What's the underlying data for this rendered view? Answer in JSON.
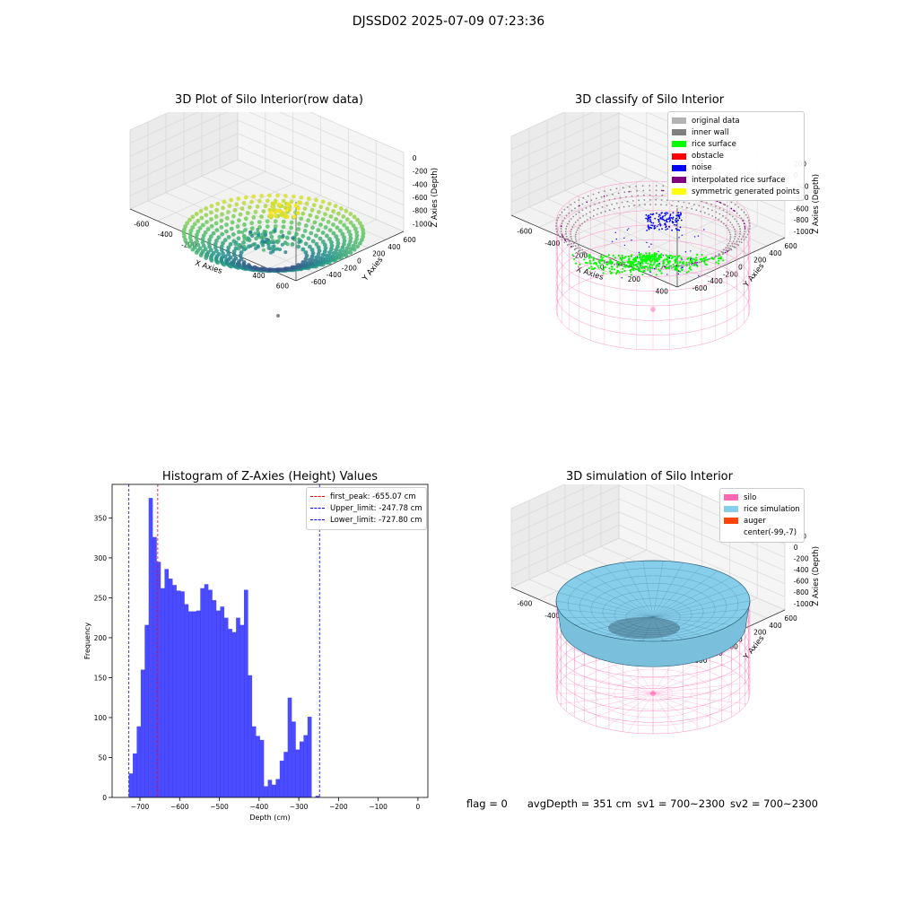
{
  "suptitle": "DJSSD02 2025-07-09 07:23:36",
  "panels": {
    "raw": {
      "title": "3D Plot of Silo Interior(row data)",
      "xlabel": "X Axies",
      "ylabel": "Y Axies",
      "zlabel": "Z Axies (Depth)",
      "xticks": [
        "-600",
        "-400",
        "-200",
        "0",
        "200",
        "400",
        "600"
      ],
      "yticks": [
        "-600",
        "-400",
        "-200",
        "0",
        "200",
        "400",
        "600"
      ],
      "zticks": [
        "0",
        "-200",
        "-400",
        "-600",
        "-800",
        "-1000"
      ]
    },
    "classify": {
      "title": "3D classify of Silo Interior",
      "xlabel": "X Axies",
      "ylabel": "Y Axies",
      "zlabel": "Z Axies (Depth)",
      "xticks": [
        "-600",
        "-400",
        "-200",
        "0",
        "200",
        "400"
      ],
      "yticks": [
        "-600",
        "-400",
        "-200",
        "0",
        "200",
        "400",
        "600"
      ],
      "zticks": [
        "200",
        "0",
        "-200",
        "-400",
        "-600",
        "-800",
        "-1000"
      ],
      "legend": [
        {
          "label": "original data",
          "color": "#b3b3b3"
        },
        {
          "label": "inner wall",
          "color": "#808080"
        },
        {
          "label": "rice surface",
          "color": "#00ff00"
        },
        {
          "label": "obstacle",
          "color": "#ff0000"
        },
        {
          "label": "noise",
          "color": "#0000ff"
        },
        {
          "label": "interpolated rice surface",
          "color": "#800080"
        },
        {
          "label": "symmetric generated points",
          "color": "#ffff00"
        }
      ]
    },
    "simulation": {
      "title": "3D simulation of Silo Interior",
      "xlabel": "X Axies",
      "ylabel": "Y Axies",
      "zlabel": "Z Axies (Depth)",
      "xticks": [
        "-600",
        "-400",
        "-200",
        "0",
        "200",
        "400"
      ],
      "yticks": [
        "-600",
        "-400",
        "-200",
        "0",
        "200",
        "400",
        "600"
      ],
      "zticks": [
        "200",
        "0",
        "-200",
        "-400",
        "-600",
        "-800",
        "-1000"
      ],
      "legend": [
        {
          "label": "silo",
          "color": "#ff69b4"
        },
        {
          "label": "rice simulation",
          "color": "#87ceeb"
        },
        {
          "label": "auger",
          "color": "#ff4500"
        },
        {
          "label": "center(-99,-7)",
          "color": "#ffffff"
        }
      ]
    }
  },
  "histogram": {
    "title": "Histogram of Z-Axies (Height) Values",
    "legend": [
      {
        "label": "first_peak: -655.07 cm",
        "color": "#ff0000"
      },
      {
        "label": "Upper_limit: -247.78 cm",
        "color": "#0000ff"
      },
      {
        "label": "Lower_limit: -727.80 cm",
        "color": "#0000ff"
      }
    ]
  },
  "chart_data": {
    "type": "bar",
    "title": "Histogram of Z-Axies (Height) Values",
    "xlabel": "Depth (cm)",
    "ylabel": "Frequency",
    "xlim": [
      -770,
      25
    ],
    "ylim": [
      0,
      392
    ],
    "xticks": [
      -700,
      -600,
      -500,
      -400,
      -300,
      -200,
      -100,
      0
    ],
    "yticks": [
      0,
      50,
      100,
      150,
      200,
      250,
      300,
      350
    ],
    "bin_start": -728,
    "bin_width": 10,
    "values": [
      30,
      55,
      89,
      160,
      216,
      375,
      326,
      295,
      262,
      286,
      274,
      266,
      259,
      258,
      242,
      233,
      233,
      234,
      262,
      267,
      260,
      247,
      234,
      239,
      225,
      211,
      207,
      225,
      216,
      260,
      153,
      89,
      77,
      72,
      14,
      22,
      16,
      23,
      46,
      57,
      125,
      95,
      60,
      70,
      78,
      101,
      0,
      2
    ],
    "bar_color": "#0000ff",
    "vlines": [
      {
        "name": "first_peak",
        "x": -655.07,
        "color": "#ff0000"
      },
      {
        "name": "Upper_limit",
        "x": -247.78,
        "color": "#0000ff"
      },
      {
        "name": "Lower_limit",
        "x": -727.8,
        "color": "#0000ff"
      }
    ],
    "grid": false,
    "legend_position": "upper right"
  },
  "footer": {
    "flag": "flag = 0",
    "avgDepth": "avgDepth = 351 cm",
    "sv1": "sv1 = 700~2300",
    "sv2": "sv2 = 700~2300"
  }
}
